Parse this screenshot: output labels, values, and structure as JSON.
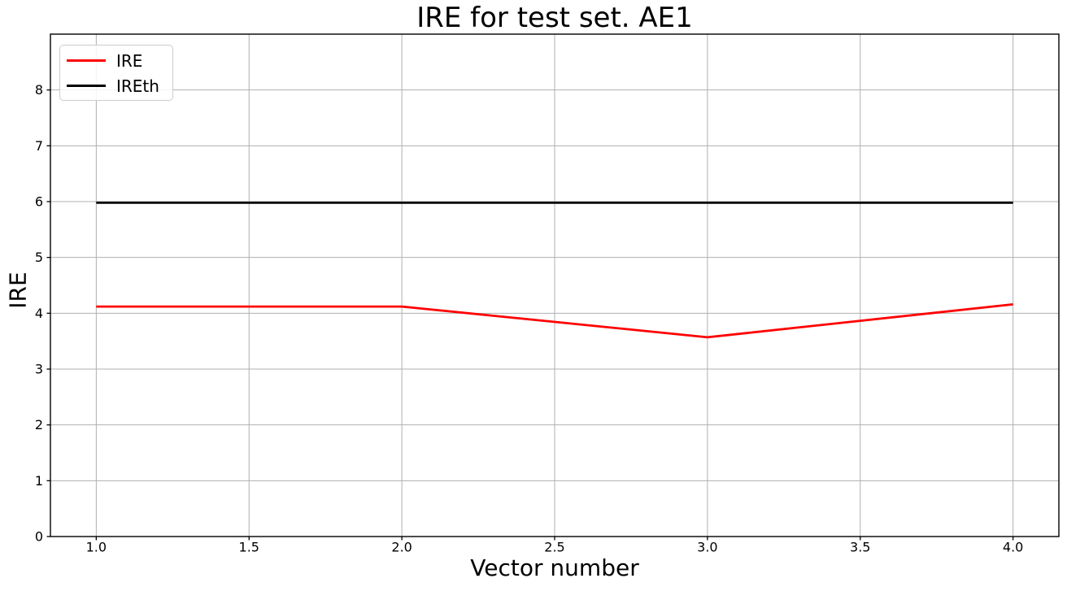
{
  "chart_data": {
    "type": "line",
    "title": "IRE for test set. AE1",
    "xlabel": "Vector number",
    "ylabel": "IRE",
    "x": [
      1,
      2,
      3,
      4
    ],
    "series": [
      {
        "name": "IRE",
        "color": "#ff0000",
        "linewidth": 2.8,
        "values": [
          4.12,
          4.12,
          3.57,
          4.16
        ]
      },
      {
        "name": "IREth",
        "color": "#000000",
        "linewidth": 2.8,
        "values": [
          5.98,
          5.98,
          5.98,
          5.98
        ]
      }
    ],
    "xlim": [
      0.85,
      4.15
    ],
    "ylim": [
      0,
      9
    ],
    "xticks": [
      1.0,
      1.5,
      2.0,
      2.5,
      3.0,
      3.5,
      4.0
    ],
    "xtick_labels": [
      "1.0",
      "1.5",
      "2.0",
      "2.5",
      "3.0",
      "3.5",
      "4.0"
    ],
    "yticks": [
      0,
      1,
      2,
      3,
      4,
      5,
      6,
      7,
      8
    ],
    "ytick_labels": [
      "0",
      "1",
      "2",
      "3",
      "4",
      "5",
      "6",
      "7",
      "8"
    ],
    "grid": true,
    "grid_color": "#b0b0b0",
    "axis_color": "#000000",
    "background": "#ffffff",
    "legend": {
      "position": "upper-left",
      "entries": [
        "IRE",
        "IREth"
      ],
      "border_color": "#cccccc"
    }
  }
}
